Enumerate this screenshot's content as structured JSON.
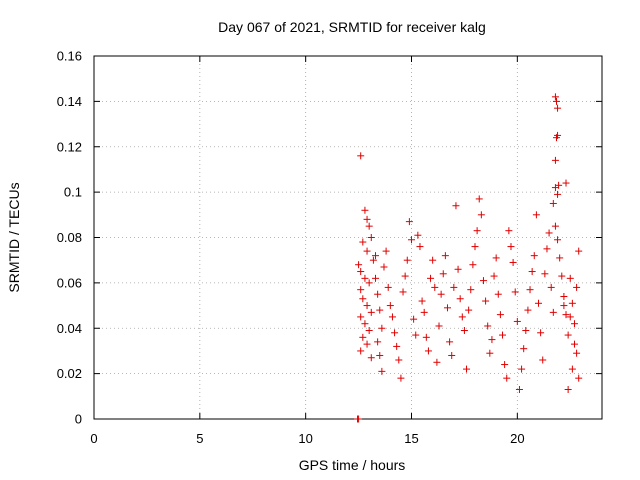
{
  "chart_data": {
    "type": "scatter",
    "title": "Day 067 of 2021, SRMTID for receiver kalg",
    "xlabel": "GPS time / hours",
    "ylabel": "SRMTID / TECUs",
    "xlim": [
      0,
      24
    ],
    "ylim": [
      0,
      0.16
    ],
    "xticks": [
      0,
      5,
      10,
      15,
      20
    ],
    "yticks": [
      0,
      0.02,
      0.04,
      0.06,
      0.08,
      0.1,
      0.12,
      0.14,
      0.16
    ],
    "xtick_labels": [
      "0",
      "5",
      "10",
      "15",
      "20"
    ],
    "ytick_labels": [
      "0",
      "0.02",
      "0.04",
      "0.06",
      "0.08",
      "0.1",
      "0.12",
      "0.14",
      "0.16"
    ],
    "grid": true,
    "marker": "plus",
    "color": "#e00000",
    "series": [
      {
        "points": [
          [
            12.45,
            0.0
          ],
          [
            12.5,
            0.0
          ],
          [
            12.6,
            0.116
          ],
          [
            21.8,
            0.142
          ],
          [
            21.85,
            0.14
          ],
          [
            21.9,
            0.137
          ],
          [
            21.9,
            0.125
          ],
          [
            21.85,
            0.124
          ],
          [
            21.8,
            0.114
          ],
          [
            21.8,
            0.102
          ],
          [
            21.95,
            0.103
          ],
          [
            22.3,
            0.104
          ],
          [
            21.7,
            0.095
          ],
          [
            21.9,
            0.099
          ],
          [
            12.8,
            0.092
          ],
          [
            12.9,
            0.088
          ],
          [
            13.0,
            0.085
          ],
          [
            13.1,
            0.08
          ],
          [
            12.7,
            0.078
          ],
          [
            12.9,
            0.074
          ],
          [
            13.2,
            0.07
          ],
          [
            12.5,
            0.068
          ],
          [
            12.6,
            0.065
          ],
          [
            12.8,
            0.062
          ],
          [
            13.0,
            0.06
          ],
          [
            12.6,
            0.057
          ],
          [
            12.7,
            0.053
          ],
          [
            12.9,
            0.05
          ],
          [
            13.1,
            0.047
          ],
          [
            12.6,
            0.045
          ],
          [
            12.8,
            0.042
          ],
          [
            13.0,
            0.039
          ],
          [
            12.7,
            0.036
          ],
          [
            12.9,
            0.033
          ],
          [
            12.6,
            0.03
          ],
          [
            13.1,
            0.027
          ],
          [
            13.3,
            0.062
          ],
          [
            13.4,
            0.055
          ],
          [
            13.5,
            0.048
          ],
          [
            13.6,
            0.04
          ],
          [
            13.4,
            0.034
          ],
          [
            13.5,
            0.028
          ],
          [
            13.6,
            0.021
          ],
          [
            13.3,
            0.072
          ],
          [
            13.7,
            0.067
          ],
          [
            13.8,
            0.074
          ],
          [
            13.9,
            0.058
          ],
          [
            14.0,
            0.05
          ],
          [
            14.1,
            0.045
          ],
          [
            14.2,
            0.038
          ],
          [
            14.3,
            0.032
          ],
          [
            14.4,
            0.026
          ],
          [
            14.5,
            0.018
          ],
          [
            14.6,
            0.056
          ],
          [
            14.7,
            0.063
          ],
          [
            14.8,
            0.07
          ],
          [
            14.9,
            0.087
          ],
          [
            15.0,
            0.079
          ],
          [
            15.1,
            0.044
          ],
          [
            15.2,
            0.037
          ],
          [
            15.3,
            0.081
          ],
          [
            15.4,
            0.076
          ],
          [
            15.5,
            0.052
          ],
          [
            15.6,
            0.047
          ],
          [
            15.7,
            0.036
          ],
          [
            15.8,
            0.03
          ],
          [
            15.9,
            0.062
          ],
          [
            16.0,
            0.07
          ],
          [
            16.1,
            0.058
          ],
          [
            16.2,
            0.025
          ],
          [
            16.3,
            0.041
          ],
          [
            16.4,
            0.055
          ],
          [
            16.5,
            0.064
          ],
          [
            16.6,
            0.072
          ],
          [
            16.7,
            0.049
          ],
          [
            16.8,
            0.034
          ],
          [
            16.9,
            0.028
          ],
          [
            17.0,
            0.058
          ],
          [
            17.1,
            0.094
          ],
          [
            17.2,
            0.066
          ],
          [
            17.3,
            0.053
          ],
          [
            17.4,
            0.045
          ],
          [
            17.5,
            0.039
          ],
          [
            17.6,
            0.022
          ],
          [
            17.7,
            0.048
          ],
          [
            17.8,
            0.057
          ],
          [
            17.9,
            0.068
          ],
          [
            18.0,
            0.076
          ],
          [
            18.1,
            0.083
          ],
          [
            18.2,
            0.097
          ],
          [
            18.3,
            0.09
          ],
          [
            18.4,
            0.061
          ],
          [
            18.5,
            0.052
          ],
          [
            18.6,
            0.041
          ],
          [
            18.7,
            0.029
          ],
          [
            18.8,
            0.035
          ],
          [
            18.9,
            0.063
          ],
          [
            19.0,
            0.071
          ],
          [
            19.1,
            0.055
          ],
          [
            19.2,
            0.046
          ],
          [
            19.3,
            0.037
          ],
          [
            19.4,
            0.024
          ],
          [
            19.5,
            0.018
          ],
          [
            19.6,
            0.083
          ],
          [
            19.7,
            0.076
          ],
          [
            19.8,
            0.069
          ],
          [
            19.9,
            0.056
          ],
          [
            20.0,
            0.043
          ],
          [
            20.1,
            0.013
          ],
          [
            20.2,
            0.022
          ],
          [
            20.3,
            0.031
          ],
          [
            20.4,
            0.039
          ],
          [
            20.5,
            0.048
          ],
          [
            20.6,
            0.057
          ],
          [
            20.7,
            0.065
          ],
          [
            20.8,
            0.072
          ],
          [
            20.9,
            0.09
          ],
          [
            21.0,
            0.051
          ],
          [
            21.1,
            0.038
          ],
          [
            21.2,
            0.026
          ],
          [
            21.3,
            0.064
          ],
          [
            21.4,
            0.075
          ],
          [
            21.5,
            0.082
          ],
          [
            21.6,
            0.058
          ],
          [
            21.7,
            0.047
          ],
          [
            21.8,
            0.085
          ],
          [
            21.9,
            0.079
          ],
          [
            22.0,
            0.071
          ],
          [
            22.1,
            0.063
          ],
          [
            22.2,
            0.054
          ],
          [
            22.3,
            0.046
          ],
          [
            22.4,
            0.037
          ],
          [
            22.5,
            0.045
          ],
          [
            22.6,
            0.051
          ],
          [
            22.7,
            0.033
          ],
          [
            22.8,
            0.029
          ],
          [
            22.9,
            0.018
          ],
          [
            22.4,
            0.013
          ],
          [
            22.6,
            0.022
          ],
          [
            22.8,
            0.058
          ],
          [
            22.9,
            0.074
          ],
          [
            22.2,
            0.05
          ],
          [
            22.5,
            0.062
          ],
          [
            22.7,
            0.042
          ]
        ]
      }
    ]
  }
}
